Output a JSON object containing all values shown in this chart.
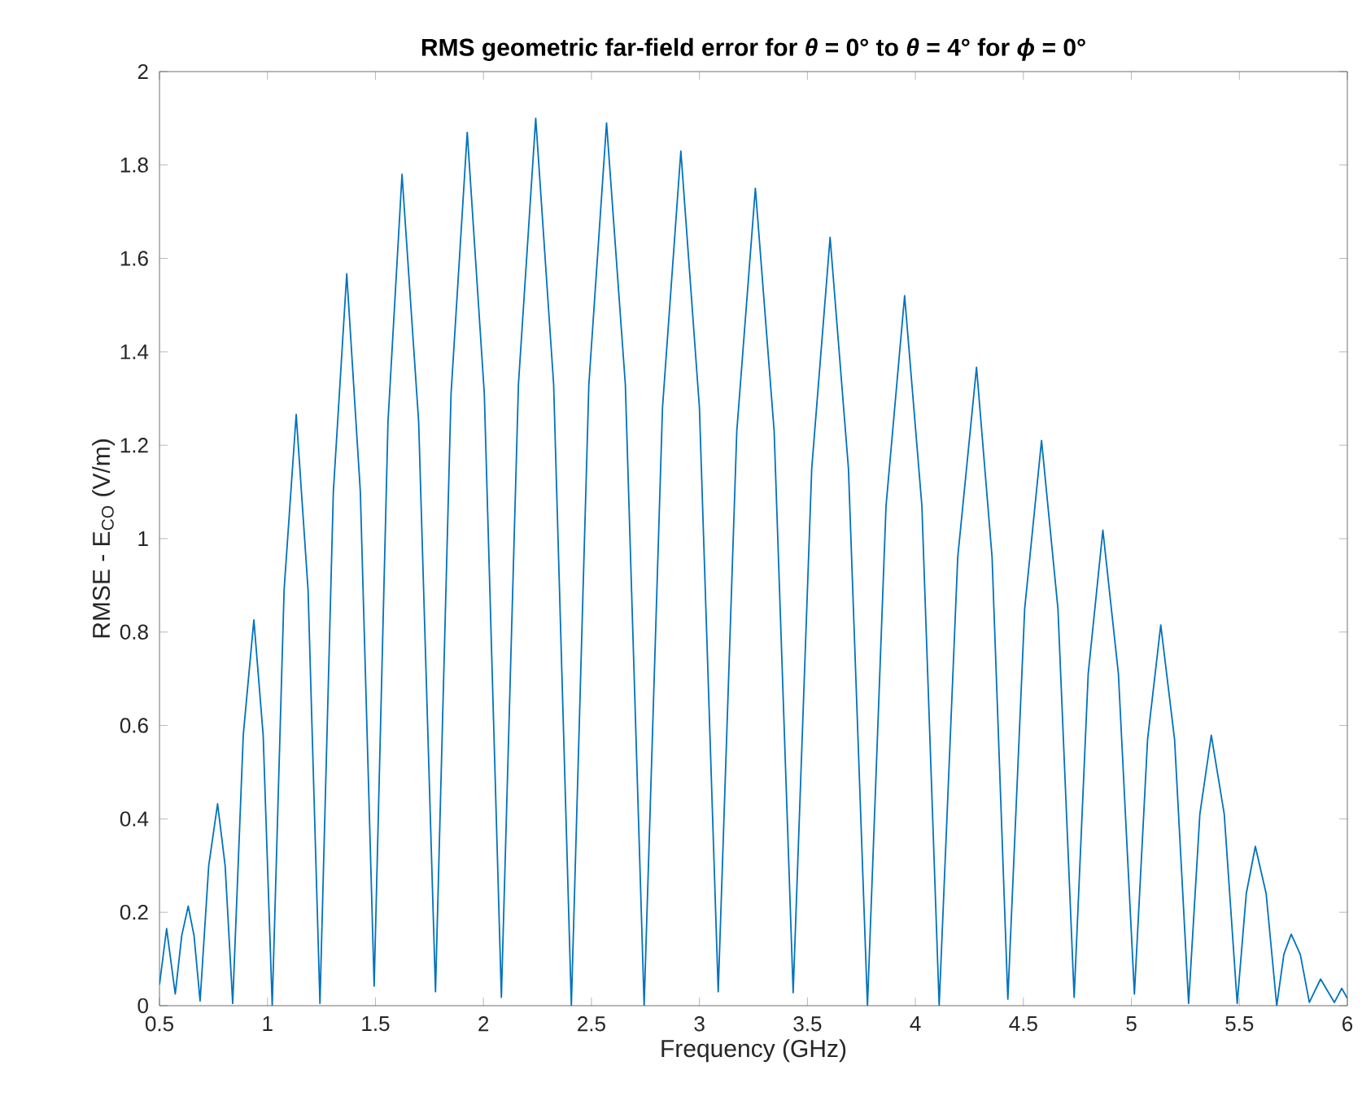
{
  "chart_data": {
    "type": "line",
    "title": "RMS geometric far-field error for *θ* = 0° to *θ* = 4° for *ϕ* = 0°",
    "xlabel": "Frequency (GHz)",
    "ylabel": "RMSE - E$_{CO}$ (V/m)",
    "xlim": [
      0.5,
      6
    ],
    "ylim": [
      0,
      2
    ],
    "xticks": [
      0.5,
      1,
      1.5,
      2,
      2.5,
      3,
      3.5,
      4,
      4.5,
      5,
      5.5,
      6
    ],
    "yticks": [
      0,
      0.2,
      0.4,
      0.6,
      0.8,
      1,
      1.2,
      1.4,
      1.6,
      1.8,
      2
    ],
    "grid": false,
    "marker": "none",
    "line_style": "solid",
    "series": [
      {
        "color": "#0072bd",
        "x": [
          0.5,
          0.533,
          0.573,
          0.603,
          0.633,
          0.66,
          0.688,
          0.728,
          0.769,
          0.804,
          0.839,
          0.888,
          0.937,
          0.98,
          1.022,
          1.077,
          1.133,
          1.188,
          1.243,
          1.305,
          1.367,
          1.43,
          1.494,
          1.558,
          1.623,
          1.7,
          1.778,
          1.85,
          1.925,
          2.004,
          2.083,
          2.162,
          2.242,
          2.325,
          2.407,
          2.488,
          2.57,
          2.657,
          2.744,
          2.829,
          2.914,
          3.0,
          3.087,
          3.173,
          3.259,
          3.346,
          3.434,
          3.52,
          3.605,
          3.69,
          3.778,
          3.864,
          3.95,
          4.03,
          4.11,
          4.196,
          4.283,
          4.355,
          4.428,
          4.506,
          4.584,
          4.66,
          4.735,
          4.8,
          4.868,
          4.94,
          5.014,
          5.075,
          5.136,
          5.2,
          5.265,
          5.317,
          5.37,
          5.43,
          5.49,
          5.532,
          5.574,
          5.624,
          5.673,
          5.706,
          5.74,
          5.782,
          5.824,
          5.876,
          5.94,
          5.974,
          6.0
        ],
        "values": [
          0.045,
          0.165,
          0.025,
          0.15,
          0.213,
          0.15,
          0.01,
          0.3,
          0.432,
          0.3,
          0.005,
          0.58,
          0.826,
          0.58,
          0,
          0.89,
          1.266,
          0.89,
          0.005,
          1.1,
          1.567,
          1.1,
          0.042,
          1.25,
          1.78,
          1.25,
          0.03,
          1.31,
          1.87,
          1.31,
          0.018,
          1.33,
          1.9,
          1.33,
          0,
          1.33,
          1.89,
          1.33,
          0,
          1.28,
          1.83,
          1.28,
          0.03,
          1.23,
          1.75,
          1.23,
          0.028,
          1.15,
          1.645,
          1.15,
          0,
          1.07,
          1.52,
          1.07,
          0,
          0.96,
          1.367,
          0.96,
          0.014,
          0.85,
          1.21,
          0.85,
          0.018,
          0.71,
          1.018,
          0.71,
          0.025,
          0.57,
          0.815,
          0.57,
          0.005,
          0.41,
          0.579,
          0.41,
          0.005,
          0.24,
          0.341,
          0.24,
          0,
          0.11,
          0.153,
          0.11,
          0.007,
          0.057,
          0.007,
          0.037,
          0.016
        ]
      }
    ]
  }
}
